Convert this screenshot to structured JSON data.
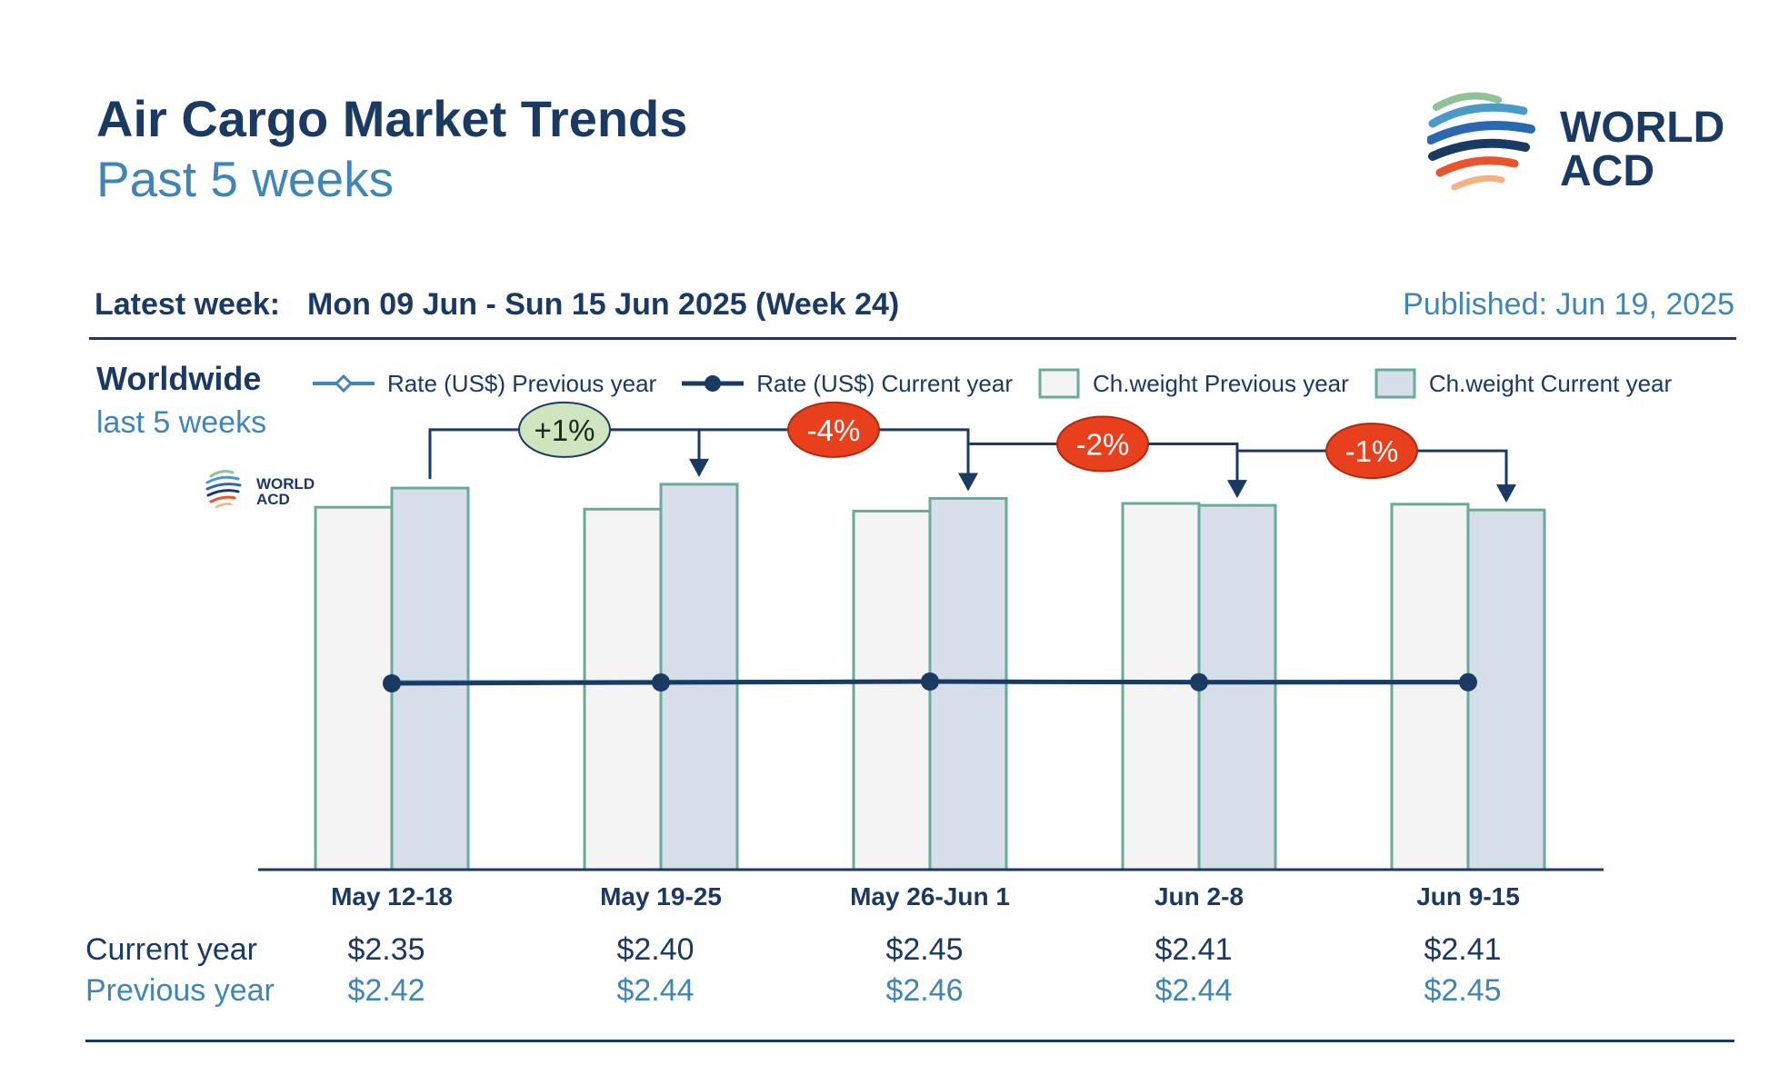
{
  "header": {
    "title": "Air Cargo Market Trends",
    "subtitle": "Past 5 weeks",
    "logo_text_line1": "WORLD",
    "logo_text_line2": "ACD"
  },
  "latest": {
    "label": "Latest week:",
    "value": "Mon 09 Jun - Sun 15 Jun 2025 (Week 24)",
    "published": "Published: Jun 19, 2025"
  },
  "region": {
    "name": "Worldwide",
    "period": "last 5 weeks"
  },
  "legend": {
    "rate_prev": "Rate (US$) Previous year",
    "rate_cur": "Rate (US$) Current year",
    "weight_prev": "Ch.weight Previous year",
    "weight_cur": "Ch.weight Current year"
  },
  "table": {
    "current_label": "Current year",
    "previous_label": "Previous year",
    "current_values": [
      "$2.35",
      "$2.40",
      "$2.45",
      "$2.41",
      "$2.41"
    ],
    "previous_values": [
      "$2.42",
      "$2.44",
      "$2.46",
      "$2.44",
      "$2.45"
    ]
  },
  "colors": {
    "navy": "#1a3a63",
    "light_blue": "#3f86b6",
    "bar_prev_fill": "#f3f4f3",
    "bar_cur_fill": "#d6dfe9",
    "bar_stroke": "#6aab96",
    "badge_red": "#e8401c",
    "badge_green": "#cfe5c0"
  },
  "chart_data": {
    "type": "bar",
    "title": "Worldwide last 5 weeks",
    "categories": [
      "May 12-18",
      "May 19-25",
      "May 26-Jun 1",
      "Jun 2-8",
      "Jun 9-15"
    ],
    "ylim": [
      0,
      100
    ],
    "series": [
      {
        "name": "Ch.weight Previous year",
        "kind": "bar",
        "values": [
          94.5,
          94.0,
          93.5,
          95.5,
          95.3
        ]
      },
      {
        "name": "Ch.weight Current year",
        "kind": "bar",
        "values": [
          99.5,
          100.5,
          96.8,
          95.0,
          93.8
        ]
      },
      {
        "name": "Rate (US$) Previous year",
        "kind": "line",
        "values": [
          2.42,
          2.44,
          2.46,
          2.44,
          2.45
        ]
      },
      {
        "name": "Rate (US$) Current year",
        "kind": "line",
        "values": [
          2.35,
          2.4,
          2.45,
          2.41,
          2.41
        ]
      }
    ],
    "changes": [
      "+1%",
      "-4%",
      "-2%",
      "-1%"
    ]
  }
}
